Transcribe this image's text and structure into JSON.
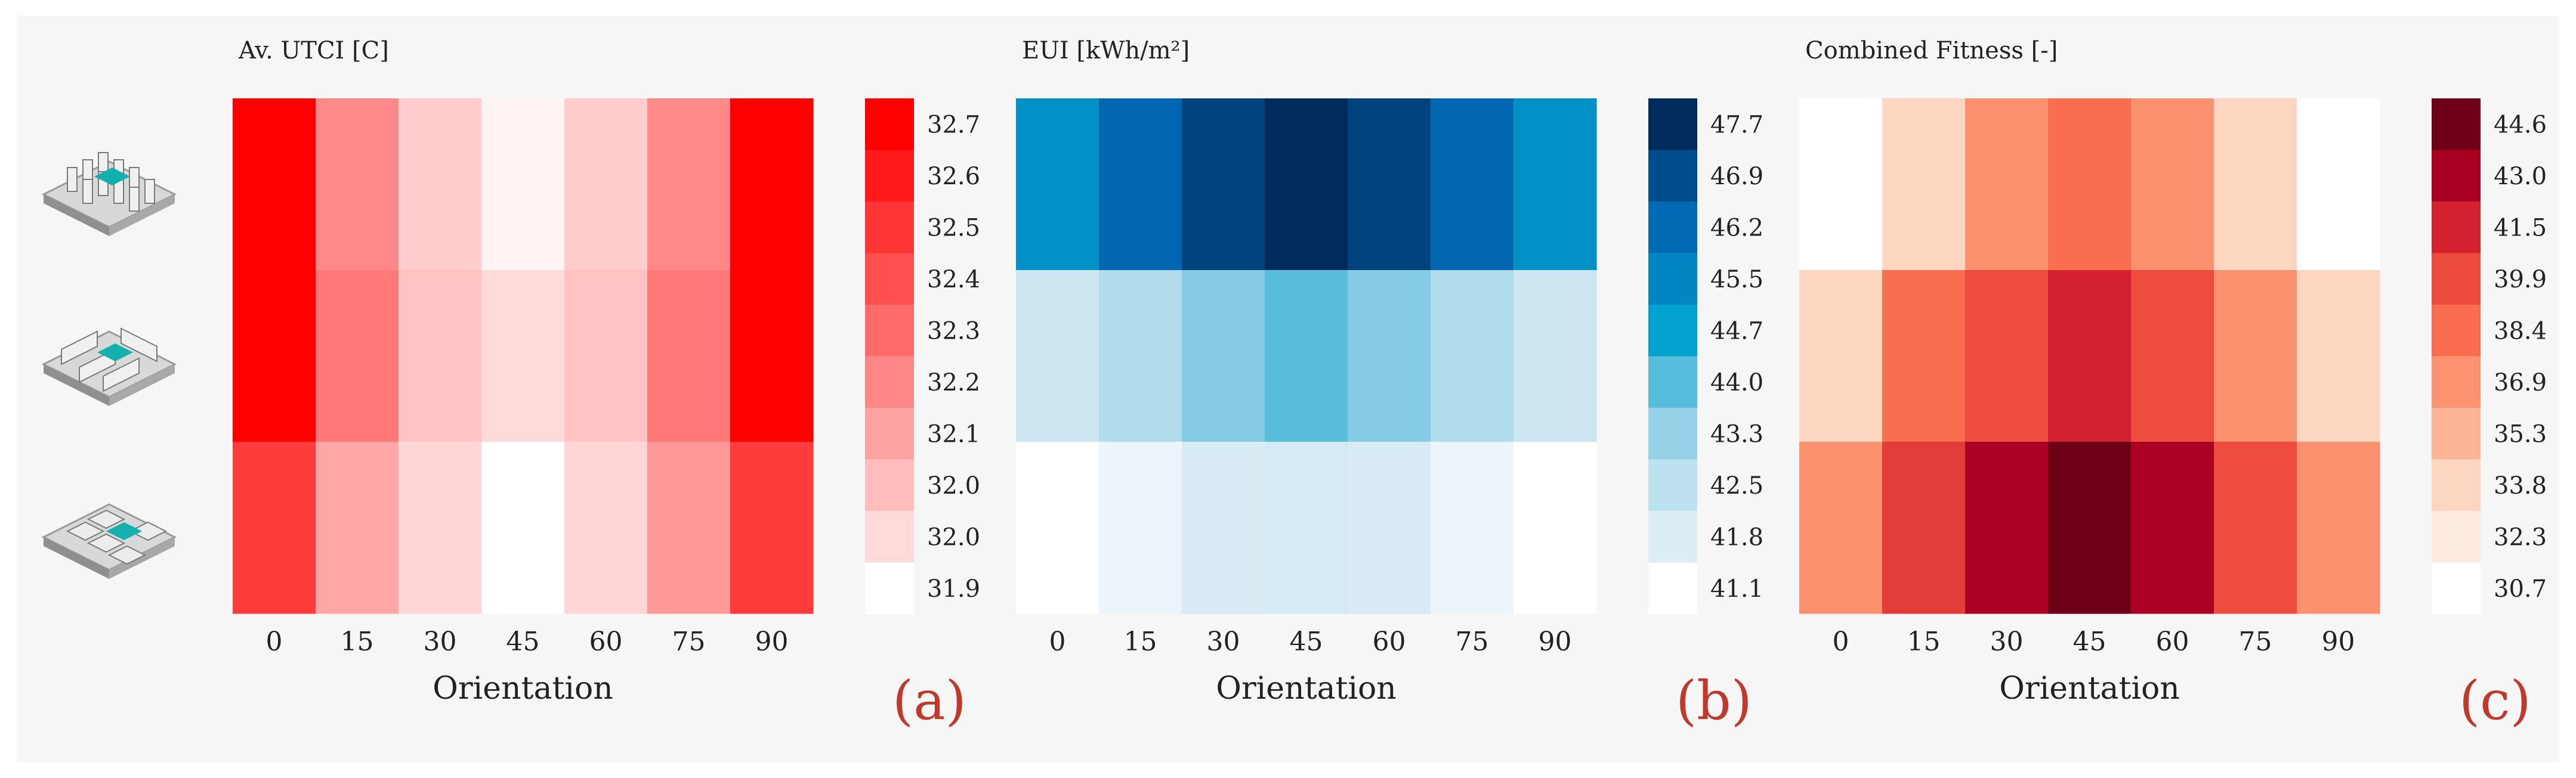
{
  "chart_data": [
    {
      "type": "heatmap",
      "title": "Av. UTCI [C]",
      "xlabel": "Orientation",
      "ylabel": "",
      "x": [
        "0",
        "15",
        "30",
        "45",
        "60",
        "75",
        "90"
      ],
      "rows": [
        "grid-layout",
        "linear-layout",
        "courtyard-layout"
      ],
      "values": [
        [
          32.7,
          32.25,
          32.03,
          31.93,
          32.03,
          32.25,
          32.7
        ],
        [
          32.7,
          32.3,
          32.06,
          31.99,
          32.06,
          32.3,
          32.7
        ],
        [
          32.5,
          32.15,
          32.0,
          31.9,
          32.0,
          32.2,
          32.5
        ]
      ],
      "colorbar": {
        "ticks": [
          "32.7",
          "32.6",
          "32.5",
          "32.4",
          "32.3",
          "32.2",
          "32.1",
          "32.0",
          "32.0",
          "31.9"
        ],
        "colors": [
          "#ff0000",
          "#ff1a1a",
          "#ff3535",
          "#ff5050",
          "#ff6b6b",
          "#ff8787",
          "#ffa2a2",
          "#ffbdbd",
          "#ffdada",
          "#ffffff"
        ],
        "min": 31.9,
        "max": 32.7
      },
      "panel_label": "(a)"
    },
    {
      "type": "heatmap",
      "title": "EUI [kWh/m²]",
      "xlabel": "Orientation",
      "ylabel": "",
      "x": [
        "0",
        "15",
        "30",
        "45",
        "60",
        "75",
        "90"
      ],
      "rows": [
        "grid-layout",
        "linear-layout",
        "courtyard-layout"
      ],
      "values": [
        [
          45.2,
          46.3,
          47.2,
          47.7,
          47.2,
          46.3,
          45.2
        ],
        [
          42.2,
          42.8,
          43.5,
          44.0,
          43.5,
          42.8,
          42.2
        ],
        [
          41.1,
          41.5,
          41.9,
          42.0,
          41.9,
          41.5,
          41.1
        ]
      ],
      "colorbar": {
        "ticks": [
          "47.7",
          "46.9",
          "46.2",
          "45.5",
          "44.7",
          "44.0",
          "43.3",
          "42.5",
          "41.8",
          "41.1"
        ],
        "colors": [
          "#002b5b",
          "#004c8c",
          "#006ab4",
          "#0185c3",
          "#01a2cd",
          "#58bcdc",
          "#94d0e6",
          "#bde1ee",
          "#dcedf6",
          "#ffffff"
        ],
        "min": 41.1,
        "max": 47.7
      },
      "panel_label": "(b)"
    },
    {
      "type": "heatmap",
      "title": "Combined Fitness [-]",
      "xlabel": "Orientation",
      "ylabel": "",
      "x": [
        "0",
        "15",
        "30",
        "45",
        "60",
        "75",
        "90"
      ],
      "rows": [
        "grid-layout",
        "linear-layout",
        "courtyard-layout"
      ],
      "values": [
        [
          30.7,
          33.8,
          36.9,
          38.4,
          36.9,
          33.8,
          30.7
        ],
        [
          33.8,
          38.4,
          39.9,
          41.5,
          39.9,
          36.9,
          33.8
        ],
        [
          36.9,
          40.5,
          43.0,
          44.6,
          43.0,
          39.9,
          36.9
        ]
      ],
      "colorbar": {
        "ticks": [
          "44.6",
          "43.0",
          "41.5",
          "39.9",
          "38.4",
          "36.9",
          "35.3",
          "33.8",
          "32.3",
          "30.7"
        ],
        "colors": [
          "#6d0017",
          "#a90022",
          "#d42130",
          "#ec4b3d",
          "#fa6d50",
          "#fc9270",
          "#fdb596",
          "#fdd6c1",
          "#feebe0",
          "#ffffff"
        ],
        "min": 30.7,
        "max": 44.6
      },
      "panel_label": "(c)"
    }
  ],
  "row_icons": [
    {
      "name": "grid-layout-icon",
      "color": "#12b1ad"
    },
    {
      "name": "linear-layout-icon",
      "color": "#12b1ad"
    },
    {
      "name": "courtyard-layout-icon",
      "color": "#12b1ad"
    }
  ]
}
